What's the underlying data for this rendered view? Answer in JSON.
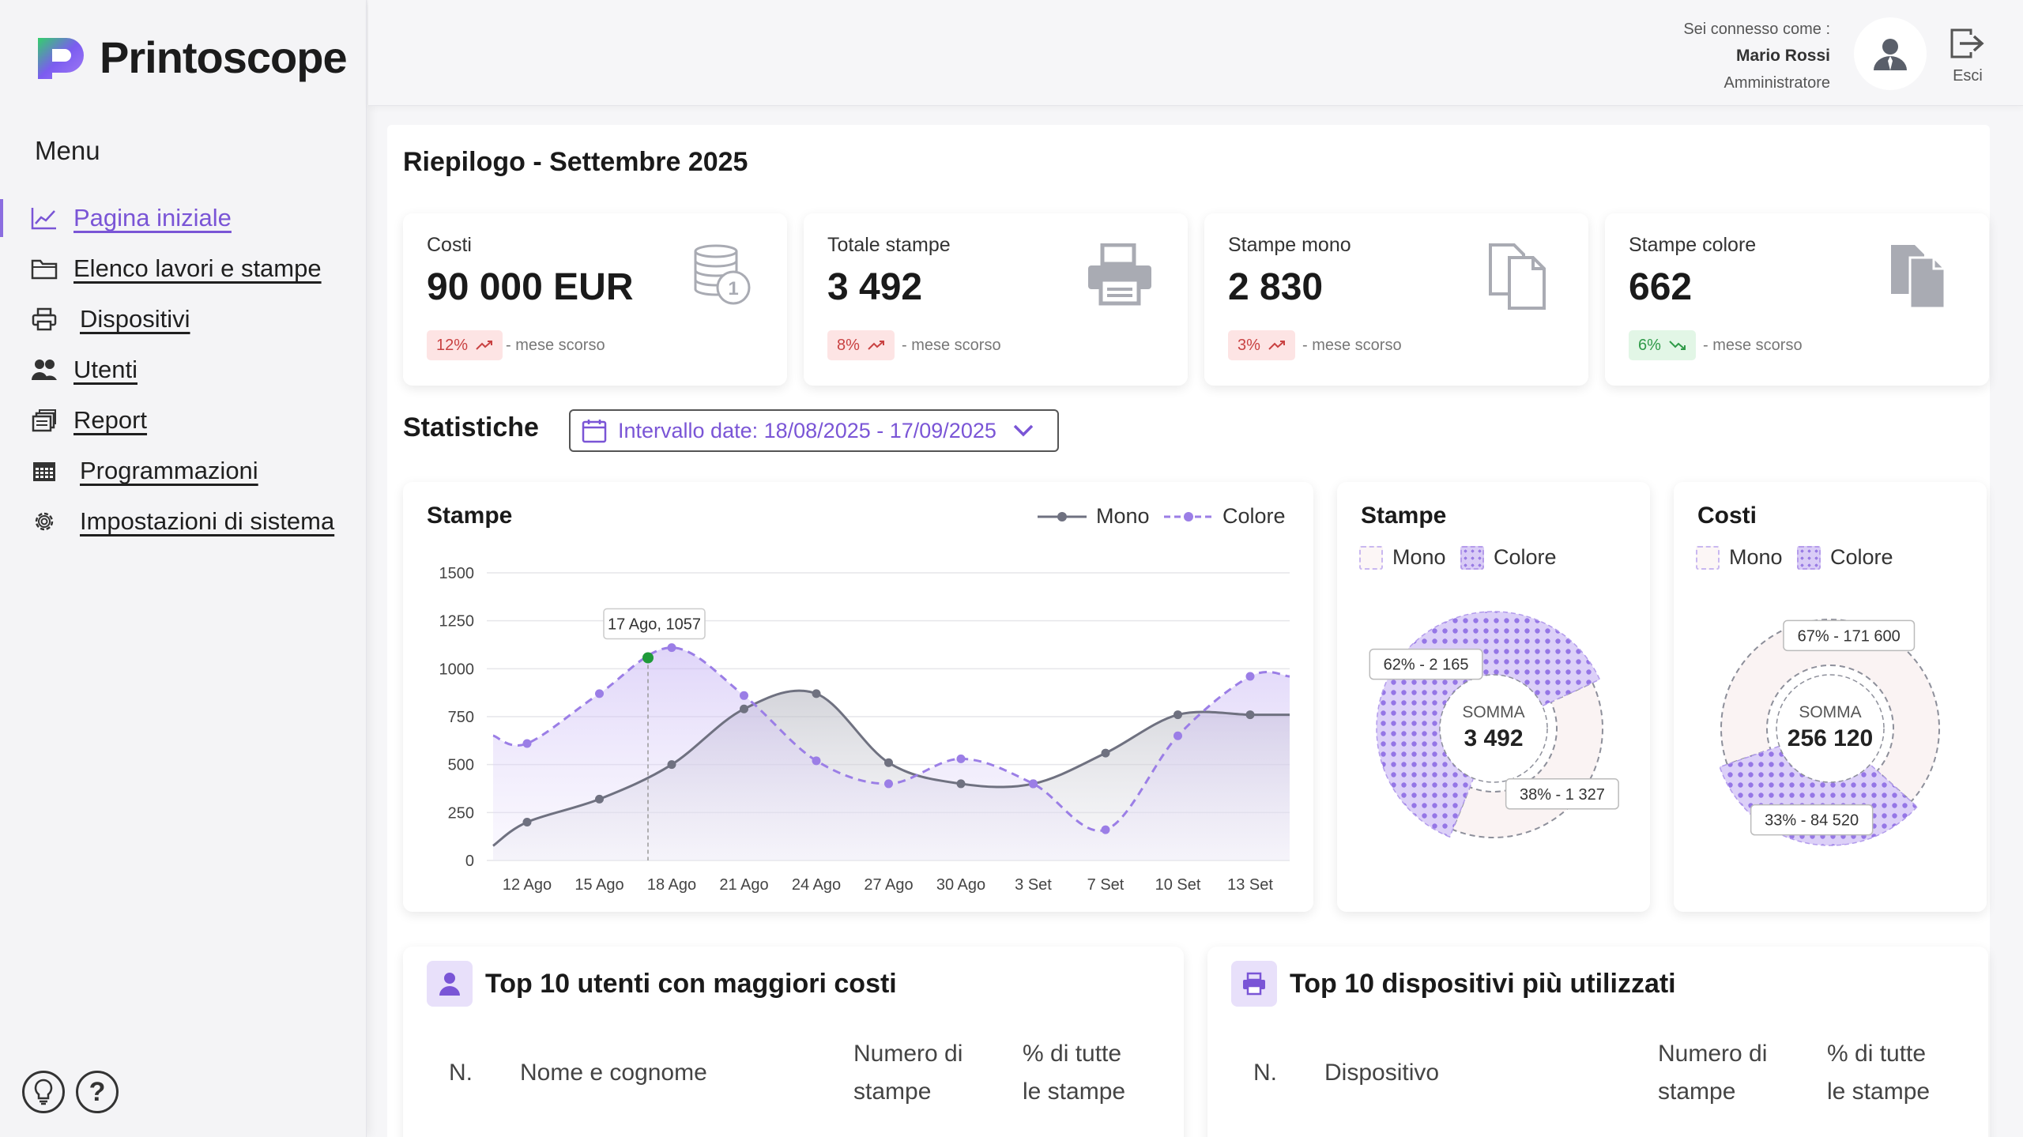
{
  "app": {
    "name": "Printoscope"
  },
  "sidebar": {
    "menu_title": "Menu",
    "items": [
      {
        "label": "Pagina iniziale",
        "icon": "line-chart-icon",
        "active": true
      },
      {
        "label": "Elenco lavori e stampe",
        "icon": "folder-icon"
      },
      {
        "label": "Dispositivi",
        "icon": "printer-icon"
      },
      {
        "label": "Utenti",
        "icon": "users-icon"
      },
      {
        "label": "Report",
        "icon": "report-icon"
      },
      {
        "label": "Programmazioni",
        "icon": "calendar-icon"
      },
      {
        "label": "Impostazioni di sistema",
        "icon": "gear-icon"
      }
    ],
    "help": [
      "lightbulb-icon",
      "question-icon"
    ]
  },
  "header": {
    "connected_as": "Sei connesso come :",
    "user_name": "Mario Rossi",
    "user_role": "Amministratore",
    "logout_label": "Esci"
  },
  "summary": {
    "title": "Riepilogo - Settembre 2025",
    "cards": [
      {
        "title": "Costi",
        "value": "90 000 EUR",
        "change": "12%",
        "trend": "up",
        "note": "- mese scorso",
        "icon": "coins-icon"
      },
      {
        "title": "Totale stampe",
        "value": "3 492",
        "change": "8%",
        "trend": "up",
        "note": "- mese scorso",
        "icon": "printer-icon"
      },
      {
        "title": "Stampe mono",
        "value": "2 830",
        "change": "3%",
        "trend": "up",
        "note": "- mese scorso",
        "icon": "documents-outline-icon"
      },
      {
        "title": "Stampe colore",
        "value": "662",
        "change": "6%",
        "trend": "down",
        "note": "- mese scorso",
        "icon": "documents-filled-icon"
      }
    ]
  },
  "stats": {
    "title": "Statistiche",
    "date_range": "Intervallo date: 18/08/2025 - 17/09/2025"
  },
  "colors": {
    "accent": "#8b6de0",
    "mono_line": "#6f7180",
    "color_line": "#9b7ee6",
    "up": "#c94242",
    "down": "#2f9a48",
    "highlight_point": "#1f9a3a"
  },
  "chart_data": [
    {
      "type": "line",
      "title": "Stampe",
      "x": [
        "12 Ago",
        "15 Ago",
        "18 Ago",
        "21 Ago",
        "24 Ago",
        "27 Ago",
        "30 Ago",
        "3 Set",
        "7 Set",
        "10 Set",
        "13 Set"
      ],
      "ylim": [
        0,
        1500
      ],
      "yticks": [
        0,
        250,
        500,
        750,
        1000,
        1250,
        1500
      ],
      "grid": true,
      "legend": "top-right",
      "series": [
        {
          "name": "Mono",
          "style": "solid",
          "values": [
            200,
            320,
            500,
            790,
            870,
            510,
            400,
            400,
            560,
            760,
            760
          ]
        },
        {
          "name": "Colore",
          "style": "dashed",
          "values": [
            610,
            870,
            1110,
            860,
            520,
            400,
            530,
            400,
            160,
            650,
            960
          ]
        }
      ],
      "tooltip": "17 Ago, 1057"
    },
    {
      "type": "pie",
      "title": "Stampe",
      "legend": [
        "Mono",
        "Colore"
      ],
      "center_label": "SOMMA",
      "center_value": "3 492",
      "slices": [
        {
          "name": "Mono",
          "percent": 38,
          "value": "1 327",
          "label": "38% - 1 327"
        },
        {
          "name": "Colore",
          "percent": 62,
          "value": "2 165",
          "label": "62% - 2 165"
        }
      ]
    },
    {
      "type": "pie",
      "title": "Costi",
      "legend": [
        "Mono",
        "Colore"
      ],
      "center_label": "SOMMA",
      "center_value": "256 120",
      "slices": [
        {
          "name": "Mono",
          "percent": 67,
          "value": "171 600",
          "label": "67% - 171 600"
        },
        {
          "name": "Colore",
          "percent": 33,
          "value": "84 520",
          "label": "33% - 84 520"
        }
      ]
    }
  ],
  "top_users": {
    "title": "Top 10 utenti con maggiori costi",
    "columns": [
      "N.",
      "Nome e cognome",
      "Numero di\nstampe",
      "% di tutte\nle stampe"
    ]
  },
  "top_devices": {
    "title": "Top 10 dispositivi più utilizzati",
    "columns": [
      "N.",
      "Dispositivo",
      "Numero di\nstampe",
      "% di tutte\nle stampe"
    ]
  }
}
